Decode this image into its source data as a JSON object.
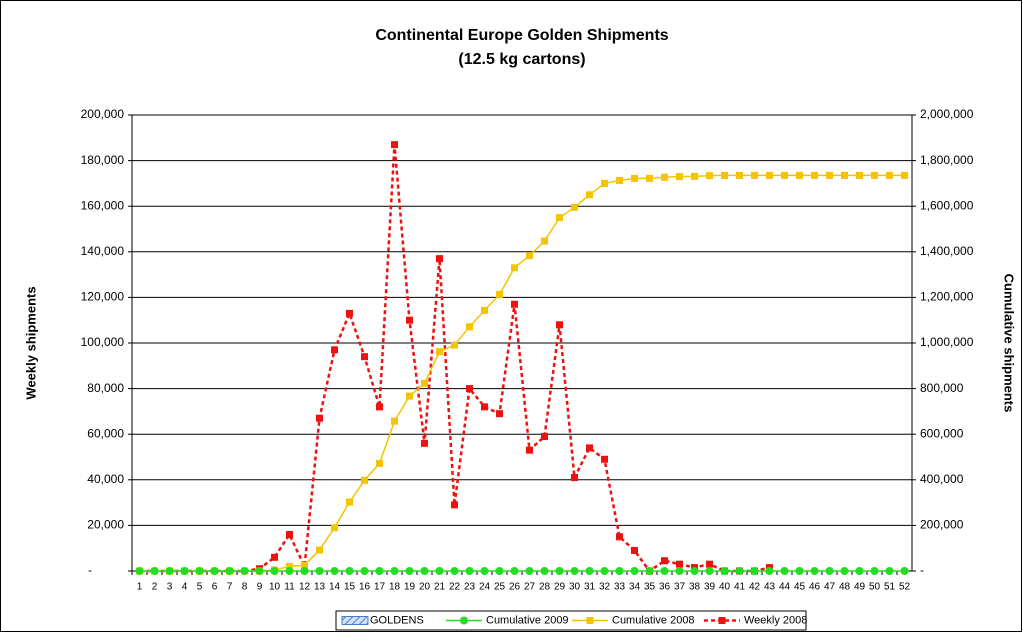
{
  "chart_data": {
    "type": "line",
    "title": "Continental Europe Golden Shipments",
    "subtitle": "(12.5 kg cartons)",
    "y_label": "Weekly shipments",
    "y2_label": "Cumulative shipments",
    "categories": [
      "1",
      "2",
      "3",
      "4",
      "5",
      "6",
      "7",
      "8",
      "9",
      "10",
      "11",
      "12",
      "13",
      "14",
      "15",
      "16",
      "17",
      "18",
      "19",
      "20",
      "21",
      "22",
      "23",
      "24",
      "25",
      "26",
      "27",
      "28",
      "29",
      "30",
      "31",
      "32",
      "33",
      "34",
      "35",
      "36",
      "37",
      "38",
      "39",
      "40",
      "41",
      "42",
      "43",
      "44",
      "45",
      "46",
      "47",
      "48",
      "49",
      "50",
      "51",
      "52"
    ],
    "ylim": [
      0,
      200000
    ],
    "yticks": [
      {
        "value": 0,
        "label": "-"
      },
      {
        "value": 20000,
        "label": "20,000"
      },
      {
        "value": 40000,
        "label": "40,000"
      },
      {
        "value": 60000,
        "label": "60,000"
      },
      {
        "value": 80000,
        "label": "80,000"
      },
      {
        "value": 100000,
        "label": "100,000"
      },
      {
        "value": 120000,
        "label": "120,000"
      },
      {
        "value": 140000,
        "label": "140,000"
      },
      {
        "value": 160000,
        "label": "160,000"
      },
      {
        "value": 180000,
        "label": "180,000"
      },
      {
        "value": 200000,
        "label": "200,000"
      }
    ],
    "y2lim": [
      0,
      2000000
    ],
    "y2ticks": [
      {
        "value": 0,
        "label": "-"
      },
      {
        "value": 200000,
        "label": "200,000"
      },
      {
        "value": 400000,
        "label": "400,000"
      },
      {
        "value": 600000,
        "label": "600,000"
      },
      {
        "value": 800000,
        "label": "800,000"
      },
      {
        "value": 1000000,
        "label": "1,000,000"
      },
      {
        "value": 1200000,
        "label": "1,200,000"
      },
      {
        "value": 1400000,
        "label": "1,400,000"
      },
      {
        "value": 1600000,
        "label": "1,600,000"
      },
      {
        "value": 1800000,
        "label": "1,800,000"
      },
      {
        "value": 2000000,
        "label": "2,000,000"
      }
    ],
    "grid": true,
    "legend": "bottom",
    "series": [
      {
        "name": "GOLDENS",
        "kind": "bar",
        "color": "#7fa7e0",
        "values": [
          0,
          0,
          0,
          0,
          0,
          0,
          0,
          0,
          0,
          0,
          0,
          0,
          0,
          0,
          0,
          0,
          0,
          0,
          0,
          0,
          0,
          0,
          0,
          0,
          0,
          0,
          0,
          0,
          0,
          0,
          0,
          0,
          0,
          0,
          0,
          0,
          0,
          0,
          0,
          0,
          0,
          0,
          0,
          0,
          0,
          0,
          0,
          0,
          0,
          0,
          0,
          0
        ]
      },
      {
        "name": "Cumulative 2009",
        "kind": "line",
        "axis": "y2",
        "color": "#22dd22",
        "values": [
          0,
          0,
          0,
          0,
          0,
          0,
          0,
          0,
          0,
          0,
          0,
          0,
          0,
          0,
          0,
          0,
          0,
          0,
          0,
          0,
          0,
          0,
          0,
          0,
          0,
          0,
          0,
          0,
          0,
          0,
          0,
          0,
          0,
          0,
          0,
          0,
          0,
          0,
          0,
          0,
          0,
          0,
          0,
          0,
          0,
          0,
          0,
          0,
          0,
          0,
          0,
          0
        ]
      },
      {
        "name": "Cumulative 2008",
        "kind": "line",
        "axis": "y2",
        "color": "#f5c400",
        "values": [
          0,
          0,
          0,
          0,
          0,
          0,
          0,
          0,
          0,
          5000,
          20000,
          25000,
          92000,
          190000,
          302000,
          398000,
          472000,
          657000,
          767000,
          823000,
          962000,
          991000,
          1071000,
          1143000,
          1213000,
          1330000,
          1383000,
          1447000,
          1550000,
          1595000,
          1650000,
          1700000,
          1713000,
          1722000,
          1722000,
          1727000,
          1730000,
          1731000,
          1734000,
          1735000,
          1735000,
          1735000,
          1735000,
          1735000,
          1735000,
          1735000,
          1735000,
          1735000,
          1735000,
          1735000,
          1735000,
          1735000
        ]
      },
      {
        "name": "Weekly 2008",
        "kind": "dashed",
        "color": "#ee1111",
        "values": [
          0,
          0,
          0,
          0,
          0,
          0,
          0,
          0,
          1000,
          6000,
          16000,
          2000,
          67000,
          97000,
          113000,
          94000,
          72000,
          187000,
          110000,
          56000,
          137000,
          29000,
          80000,
          72000,
          69000,
          117000,
          53000,
          59000,
          108000,
          41000,
          54000,
          49000,
          15000,
          9000,
          0,
          4500,
          3000,
          1500,
          3000,
          0,
          0,
          0,
          1500,
          null,
          null,
          null,
          null,
          null,
          null,
          null,
          null,
          null
        ]
      }
    ]
  }
}
